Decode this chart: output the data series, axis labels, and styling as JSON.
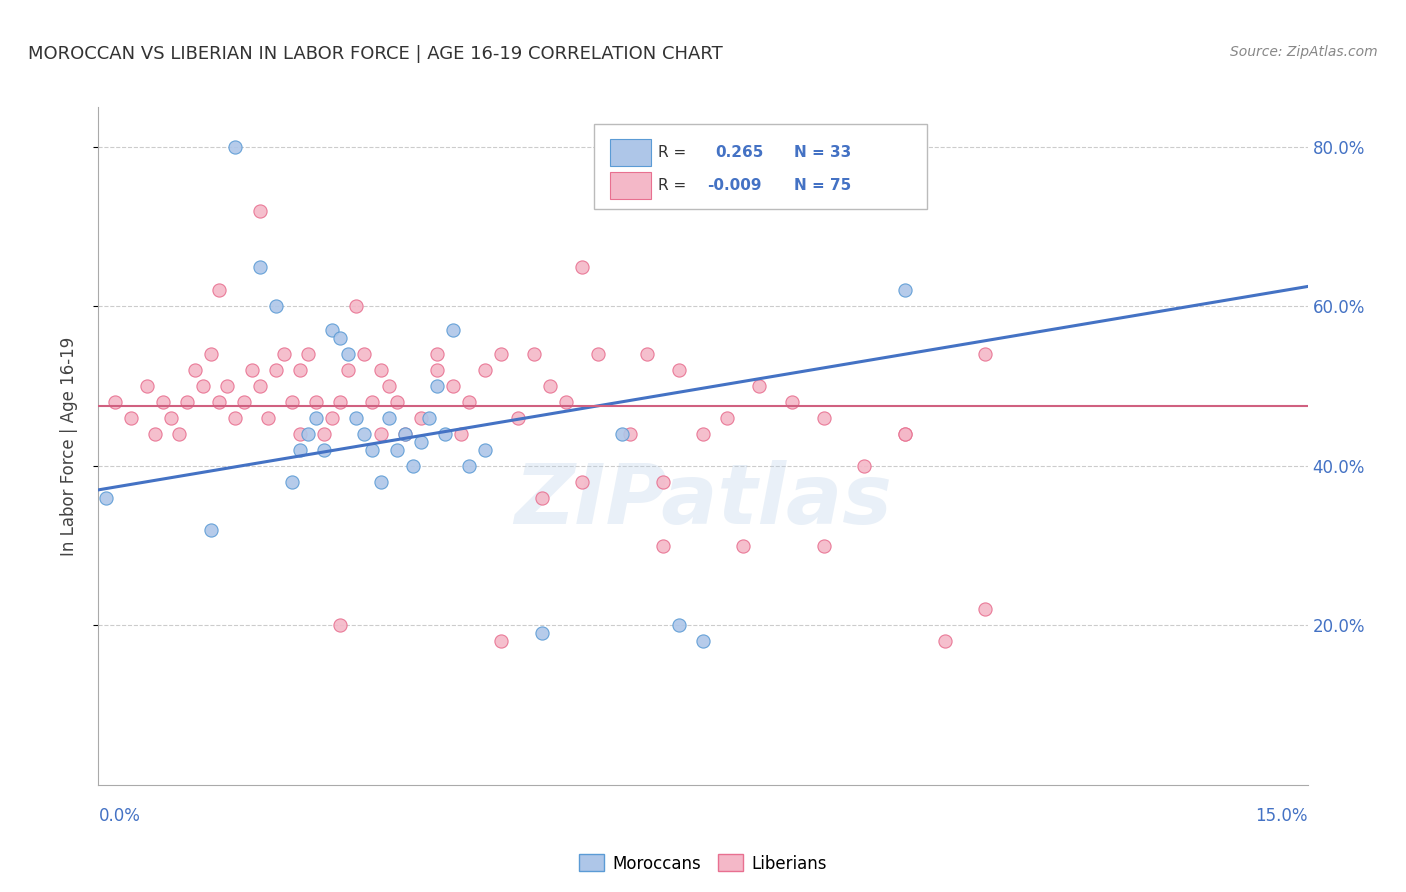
{
  "title": "MOROCCAN VS LIBERIAN IN LABOR FORCE | AGE 16-19 CORRELATION CHART",
  "source": "Source: ZipAtlas.com",
  "ylabel": "In Labor Force | Age 16-19",
  "xlim": [
    0.0,
    0.15
  ],
  "ylim": [
    0.0,
    0.85
  ],
  "yticks": [
    0.2,
    0.4,
    0.6,
    0.8
  ],
  "ytick_labels": [
    "20.0%",
    "40.0%",
    "60.0%",
    "80.0%"
  ],
  "moroccan_R": 0.265,
  "moroccan_N": 33,
  "liberian_R": -0.009,
  "liberian_N": 75,
  "moroccan_color": "#aec6e8",
  "liberian_color": "#f4b8c8",
  "moroccan_edge_color": "#5b9bd5",
  "liberian_edge_color": "#e87090",
  "moroccan_line_color": "#4472c4",
  "liberian_line_color": "#d06080",
  "background_color": "#ffffff",
  "grid_color": "#cccccc",
  "watermark": "ZIPatlas",
  "moroccan_x": [
    0.001,
    0.014,
    0.017,
    0.02,
    0.022,
    0.024,
    0.025,
    0.026,
    0.027,
    0.028,
    0.029,
    0.03,
    0.031,
    0.032,
    0.033,
    0.034,
    0.035,
    0.036,
    0.037,
    0.038,
    0.039,
    0.04,
    0.041,
    0.042,
    0.043,
    0.044,
    0.046,
    0.048,
    0.055,
    0.065,
    0.072,
    0.075,
    0.1
  ],
  "moroccan_y": [
    0.36,
    0.32,
    0.8,
    0.65,
    0.6,
    0.38,
    0.42,
    0.44,
    0.46,
    0.42,
    0.57,
    0.56,
    0.54,
    0.46,
    0.44,
    0.42,
    0.38,
    0.46,
    0.42,
    0.44,
    0.4,
    0.43,
    0.46,
    0.5,
    0.44,
    0.57,
    0.4,
    0.42,
    0.19,
    0.44,
    0.2,
    0.18,
    0.62
  ],
  "liberian_x": [
    0.002,
    0.004,
    0.006,
    0.007,
    0.008,
    0.009,
    0.01,
    0.011,
    0.012,
    0.013,
    0.014,
    0.015,
    0.016,
    0.017,
    0.018,
    0.019,
    0.02,
    0.021,
    0.022,
    0.023,
    0.024,
    0.025,
    0.026,
    0.027,
    0.028,
    0.029,
    0.03,
    0.031,
    0.032,
    0.033,
    0.034,
    0.035,
    0.036,
    0.037,
    0.038,
    0.04,
    0.042,
    0.044,
    0.046,
    0.048,
    0.05,
    0.052,
    0.054,
    0.056,
    0.058,
    0.06,
    0.062,
    0.066,
    0.068,
    0.07,
    0.072,
    0.075,
    0.078,
    0.082,
    0.086,
    0.09,
    0.095,
    0.1,
    0.105,
    0.11,
    0.02,
    0.03,
    0.042,
    0.05,
    0.06,
    0.07,
    0.08,
    0.09,
    0.1,
    0.11,
    0.015,
    0.025,
    0.035,
    0.045,
    0.055
  ],
  "liberian_y": [
    0.48,
    0.46,
    0.5,
    0.44,
    0.48,
    0.46,
    0.44,
    0.48,
    0.52,
    0.5,
    0.54,
    0.48,
    0.5,
    0.46,
    0.48,
    0.52,
    0.5,
    0.46,
    0.52,
    0.54,
    0.48,
    0.52,
    0.54,
    0.48,
    0.44,
    0.46,
    0.48,
    0.52,
    0.6,
    0.54,
    0.48,
    0.52,
    0.5,
    0.48,
    0.44,
    0.46,
    0.54,
    0.5,
    0.48,
    0.52,
    0.54,
    0.46,
    0.54,
    0.5,
    0.48,
    0.65,
    0.54,
    0.44,
    0.54,
    0.38,
    0.52,
    0.44,
    0.46,
    0.5,
    0.48,
    0.46,
    0.4,
    0.44,
    0.18,
    0.22,
    0.72,
    0.2,
    0.52,
    0.18,
    0.38,
    0.3,
    0.3,
    0.3,
    0.44,
    0.54,
    0.62,
    0.44,
    0.44,
    0.44,
    0.36
  ],
  "moroccan_trend_x": [
    0.0,
    0.15
  ],
  "moroccan_trend_y": [
    0.37,
    0.625
  ],
  "liberian_trend_y": 0.475
}
